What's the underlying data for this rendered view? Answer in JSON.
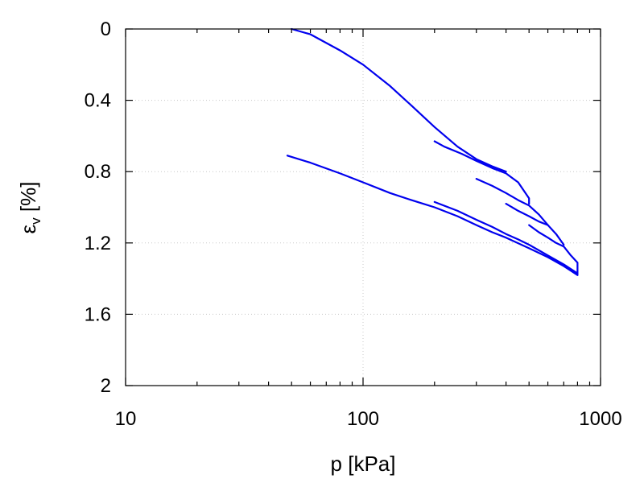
{
  "chart_data": {
    "type": "line",
    "xlabel": "p [kPa]",
    "ylabel_main": "ε",
    "ylabel_sub": "v",
    "ylabel_unit": " [%]",
    "xscale": "log",
    "xlim": [
      10,
      1000
    ],
    "ylim": [
      0,
      2
    ],
    "y_inverted": true,
    "grid": true,
    "x_ticks": [
      {
        "value": 10,
        "label": "10"
      },
      {
        "value": 100,
        "label": "100"
      },
      {
        "value": 1000,
        "label": "1000"
      }
    ],
    "x_minor_ticks": [
      20,
      30,
      40,
      50,
      60,
      70,
      80,
      90,
      200,
      300,
      400,
      500,
      600,
      700,
      800,
      900
    ],
    "y_ticks": [
      {
        "value": 0,
        "label": "0"
      },
      {
        "value": 0.4,
        "label": "0.4"
      },
      {
        "value": 0.8,
        "label": "0.8"
      },
      {
        "value": 1.2,
        "label": "1.2"
      },
      {
        "value": 1.6,
        "label": "1.6"
      },
      {
        "value": 2,
        "label": "2"
      }
    ],
    "series_color": "#0000ee",
    "series": [
      {
        "points": [
          [
            50,
            0
          ],
          [
            60,
            0.03
          ],
          [
            80,
            0.12
          ],
          [
            100,
            0.2
          ],
          [
            130,
            0.32
          ],
          [
            160,
            0.43
          ],
          [
            200,
            0.55
          ],
          [
            250,
            0.66
          ],
          [
            300,
            0.73
          ],
          [
            350,
            0.77
          ],
          [
            400,
            0.8
          ]
        ]
      },
      {
        "points": [
          [
            200,
            0.63
          ],
          [
            220,
            0.66
          ],
          [
            260,
            0.7
          ],
          [
            300,
            0.74
          ],
          [
            350,
            0.78
          ],
          [
            400,
            0.81
          ],
          [
            450,
            0.86
          ],
          [
            500,
            0.95
          ],
          [
            500,
            0.98
          ]
        ]
      },
      {
        "points": [
          [
            300,
            0.84
          ],
          [
            350,
            0.88
          ],
          [
            400,
            0.92
          ],
          [
            450,
            0.96
          ],
          [
            500,
            0.99
          ],
          [
            550,
            1.04
          ],
          [
            600,
            1.1
          ]
        ]
      },
      {
        "points": [
          [
            400,
            0.98
          ],
          [
            450,
            1.02
          ],
          [
            500,
            1.05
          ],
          [
            550,
            1.08
          ],
          [
            600,
            1.1
          ],
          [
            650,
            1.15
          ],
          [
            700,
            1.21
          ]
        ]
      },
      {
        "points": [
          [
            500,
            1.1
          ],
          [
            550,
            1.14
          ],
          [
            600,
            1.17
          ],
          [
            650,
            1.2
          ],
          [
            700,
            1.22
          ],
          [
            750,
            1.27
          ],
          [
            800,
            1.31
          ],
          [
            800,
            1.38
          ]
        ]
      },
      {
        "points": [
          [
            48,
            0.71
          ],
          [
            60,
            0.75
          ],
          [
            80,
            0.81
          ],
          [
            100,
            0.86
          ],
          [
            130,
            0.92
          ],
          [
            160,
            0.96
          ],
          [
            200,
            1.0
          ],
          [
            250,
            1.05
          ],
          [
            300,
            1.1
          ],
          [
            350,
            1.14
          ],
          [
            400,
            1.17
          ],
          [
            500,
            1.23
          ],
          [
            600,
            1.28
          ],
          [
            700,
            1.33
          ],
          [
            800,
            1.38
          ]
        ]
      },
      {
        "points": [
          [
            200,
            0.97
          ],
          [
            250,
            1.02
          ],
          [
            300,
            1.07
          ],
          [
            350,
            1.11
          ],
          [
            400,
            1.15
          ],
          [
            450,
            1.18
          ],
          [
            500,
            1.21
          ],
          [
            600,
            1.27
          ],
          [
            700,
            1.32
          ],
          [
            800,
            1.37
          ]
        ]
      }
    ]
  }
}
